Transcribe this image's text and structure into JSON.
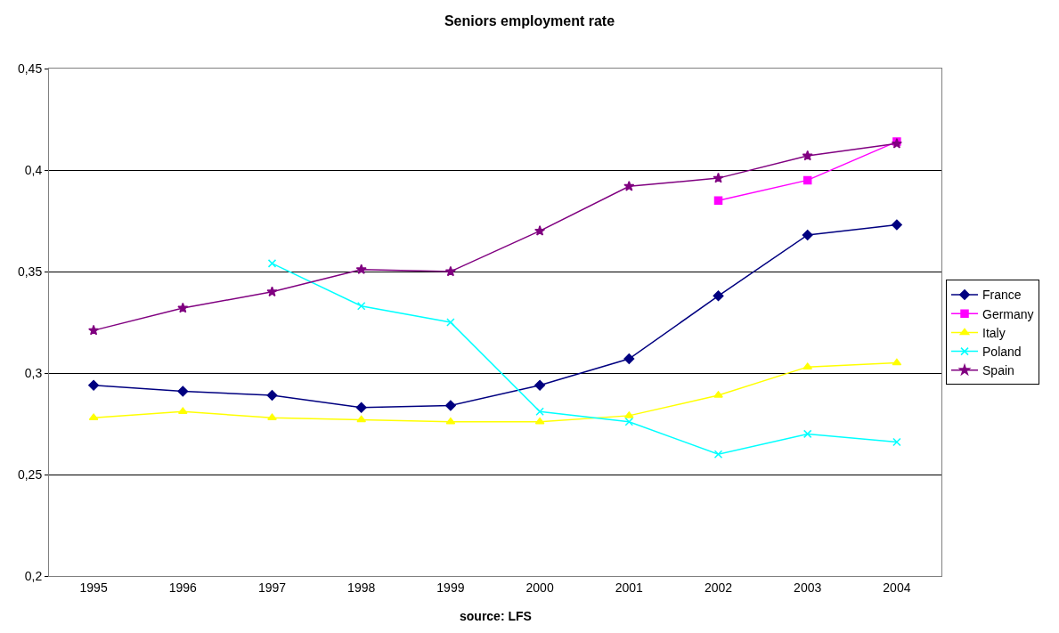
{
  "chart_data": {
    "type": "line",
    "title": "Seniors employment rate",
    "categories": [
      "1995",
      "1996",
      "1997",
      "1998",
      "1999",
      "2000",
      "2001",
      "2002",
      "2003",
      "2004"
    ],
    "series": [
      {
        "name": "France",
        "color": "#000080",
        "marker": "diamond",
        "values": [
          0.294,
          0.291,
          0.289,
          0.283,
          0.284,
          0.294,
          0.307,
          0.338,
          0.368,
          0.373
        ]
      },
      {
        "name": "Germany",
        "color": "#ff00ff",
        "marker": "square",
        "values": [
          null,
          null,
          null,
          null,
          null,
          null,
          null,
          0.385,
          0.395,
          0.414
        ]
      },
      {
        "name": "Italy",
        "color": "#ffff00",
        "marker": "triangle",
        "values": [
          0.278,
          0.281,
          0.278,
          0.277,
          0.276,
          0.276,
          0.279,
          0.289,
          0.303,
          0.305
        ]
      },
      {
        "name": "Poland",
        "color": "#00ffff",
        "marker": "cross",
        "values": [
          null,
          null,
          0.354,
          0.333,
          0.325,
          0.281,
          0.276,
          0.26,
          0.27,
          0.266
        ]
      },
      {
        "name": "Spain",
        "color": "#800080",
        "marker": "star",
        "values": [
          0.321,
          0.332,
          0.34,
          0.351,
          0.35,
          0.37,
          0.392,
          0.396,
          0.407,
          0.413
        ]
      }
    ],
    "ylim": [
      0.2,
      0.45
    ],
    "yticks": [
      {
        "value": 0.2,
        "label": "0,2"
      },
      {
        "value": 0.25,
        "label": "0,25"
      },
      {
        "value": 0.3,
        "label": "0,3"
      },
      {
        "value": 0.35,
        "label": "0,35"
      },
      {
        "value": 0.4,
        "label": "0,4"
      },
      {
        "value": 0.45,
        "label": "0,45"
      }
    ],
    "grid": "y",
    "legend": "right",
    "line_style": "solid",
    "annotations": [
      "source: LFS"
    ]
  }
}
